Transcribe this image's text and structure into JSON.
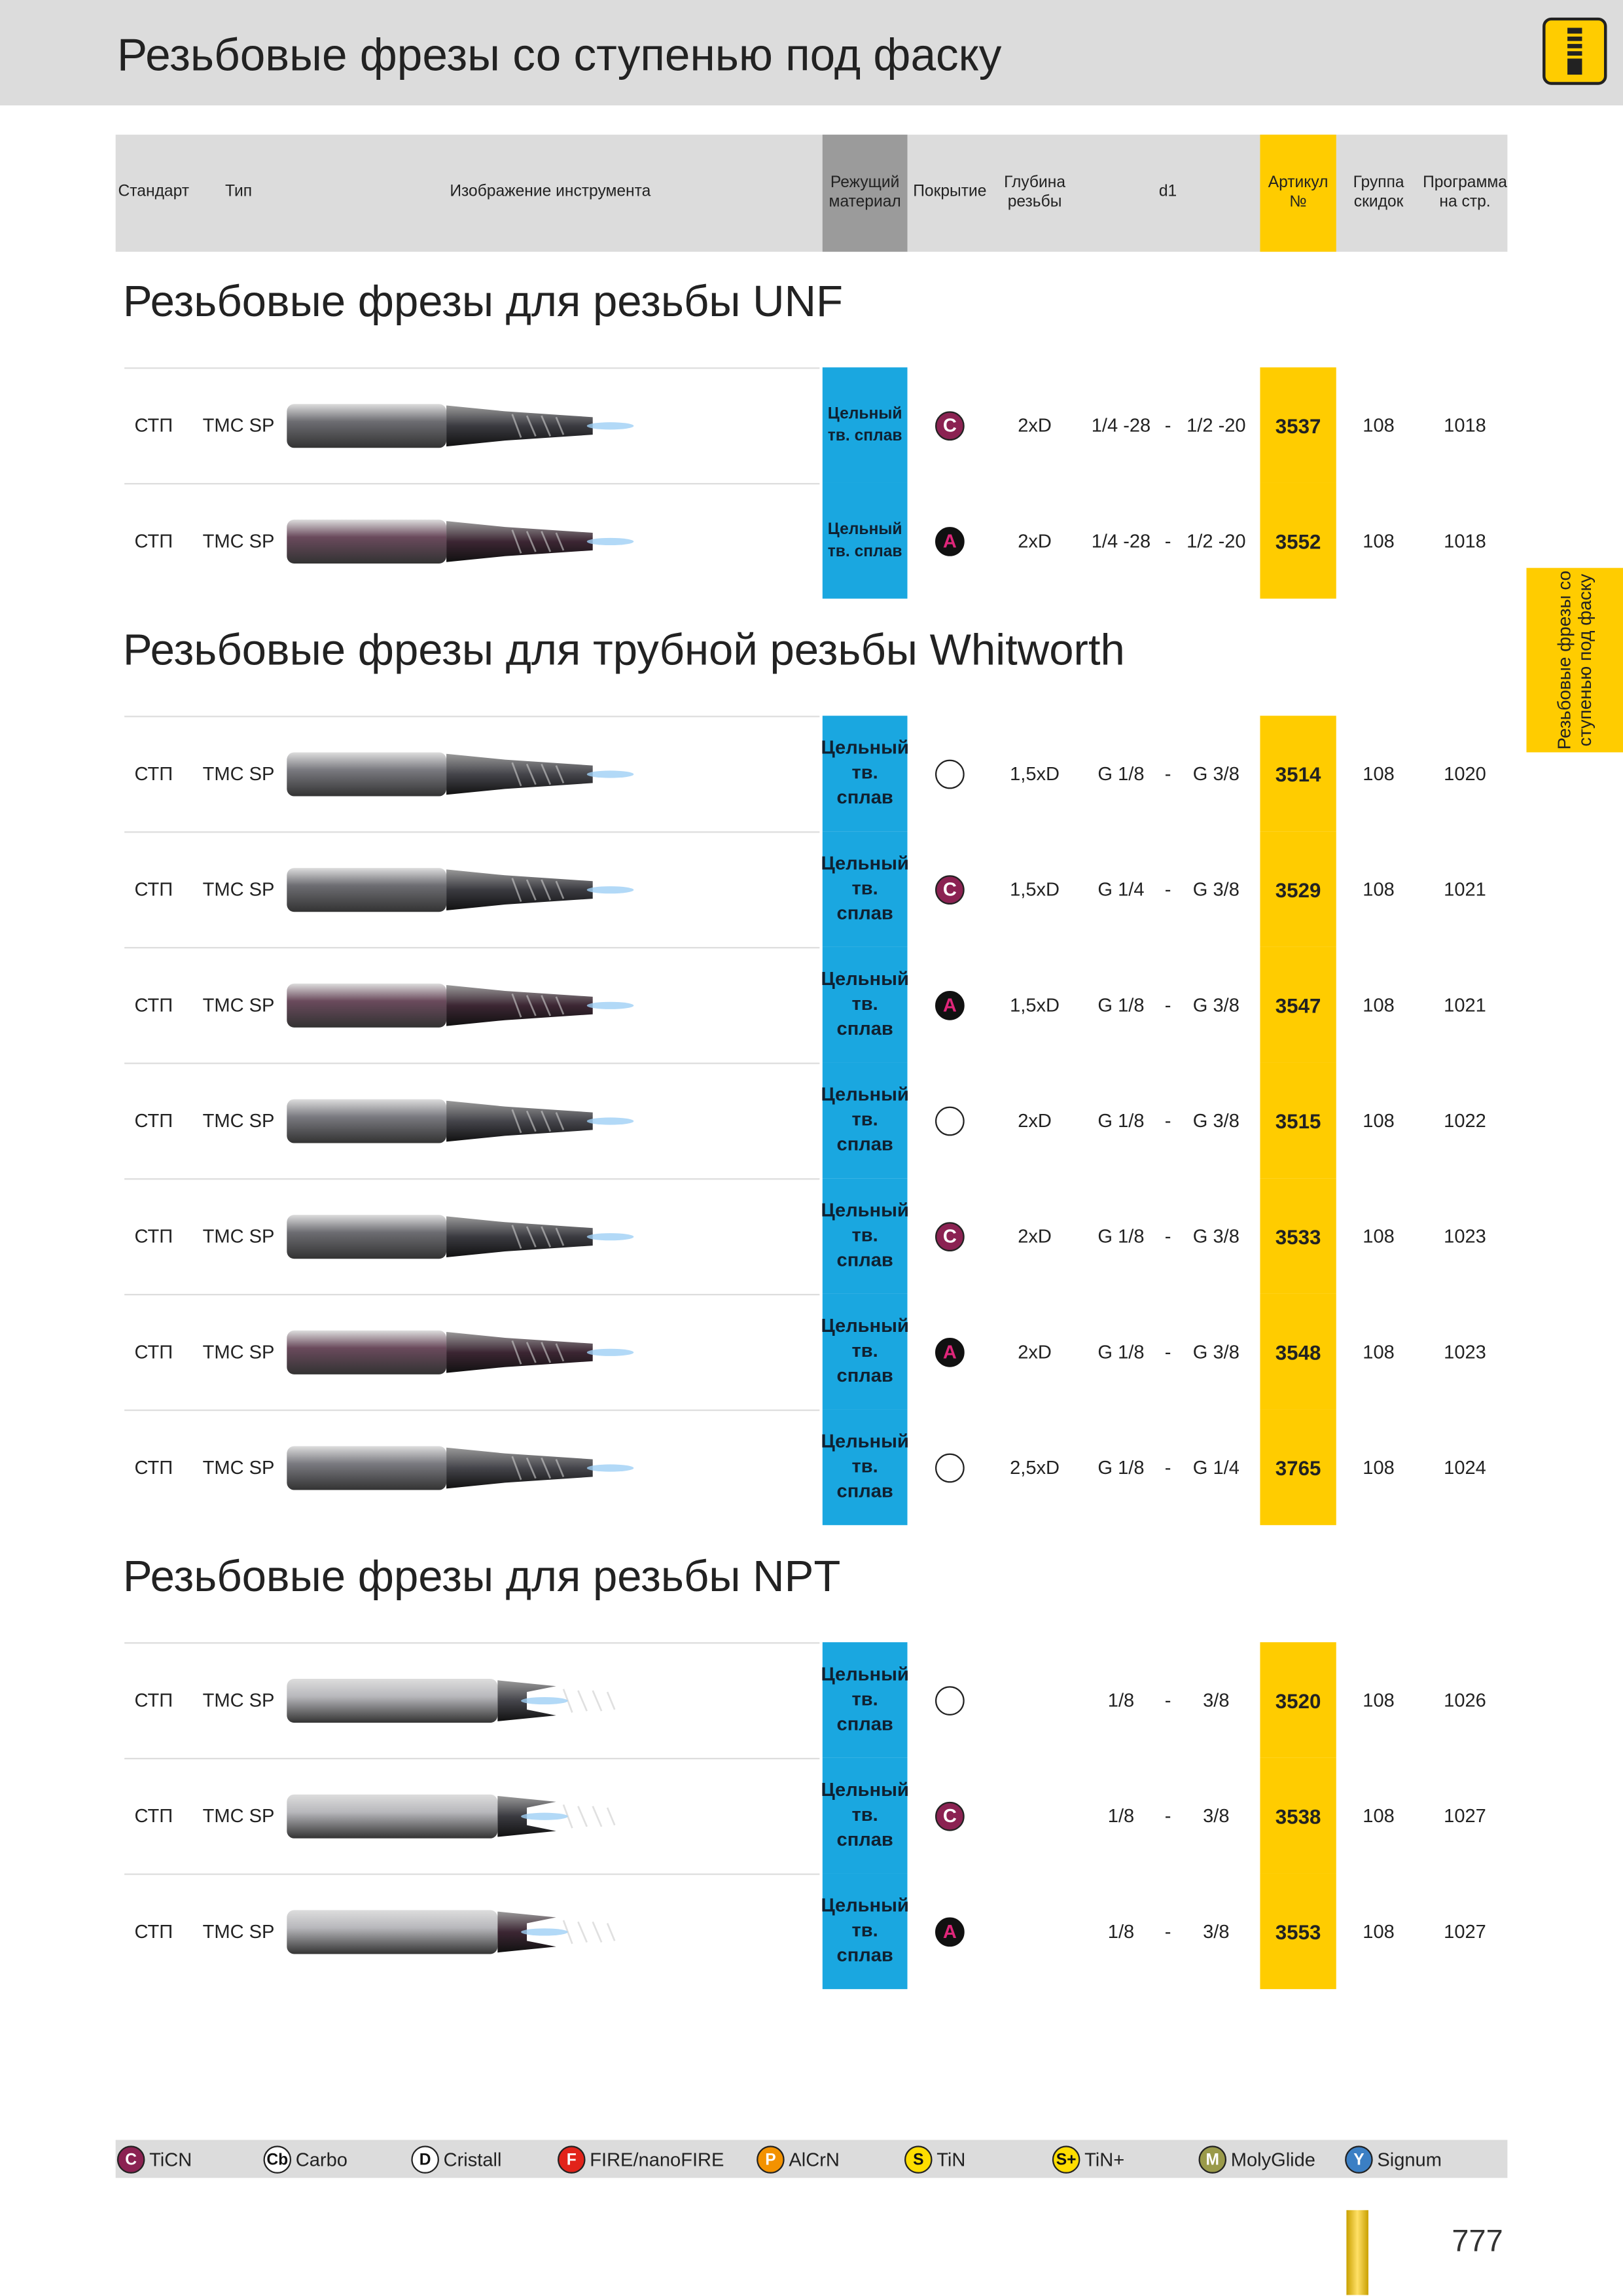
{
  "header": {
    "title": "Резьбовые фрезы со ступенью под фаску"
  },
  "columns": [
    "Стандарт",
    "Тип",
    "Изображение инструмента",
    "Режущий материал",
    "Покрытие",
    "Глубина резьбы",
    "d1",
    "Артикул №",
    "Группа скидок",
    "Программа на стр."
  ],
  "sections": [
    {
      "title": "Резьбовые фрезы для резьбы UNF",
      "rows": [
        {
          "standard": "СТП",
          "type": "TMC SP",
          "material": "Цельный тв. сплав",
          "coating": "C",
          "depth": "2xD",
          "d1_from": "1/4 -28",
          "sep": "-",
          "d1_to": "1/2 -20",
          "article": "3537",
          "group": "108",
          "page": "1018"
        },
        {
          "standard": "СТП",
          "type": "TMC SP",
          "material": "Цельный тв. сплав",
          "coating": "A",
          "depth": "2xD",
          "d1_from": "1/4 -28",
          "sep": "-",
          "d1_to": "1/2 -20",
          "article": "3552",
          "group": "108",
          "page": "1018"
        }
      ]
    },
    {
      "title": "Резьбовые фрезы для трубной резьбы Whitworth",
      "rows": [
        {
          "standard": "СТП",
          "type": "TMC SP",
          "material": "Цельный тв. сплав",
          "coating": null,
          "depth": "1,5xD",
          "d1_from": "G 1/8",
          "sep": "-",
          "d1_to": "G 3/8",
          "article": "3514",
          "group": "108",
          "page": "1020"
        },
        {
          "standard": "СТП",
          "type": "TMC SP",
          "material": "Цельный тв. сплав",
          "coating": "C",
          "depth": "1,5xD",
          "d1_from": "G 1/4",
          "sep": "-",
          "d1_to": "G 3/8",
          "article": "3529",
          "group": "108",
          "page": "1021"
        },
        {
          "standard": "СТП",
          "type": "TMC SP",
          "material": "Цельный тв. сплав",
          "coating": "A",
          "depth": "1,5xD",
          "d1_from": "G 1/8",
          "sep": "-",
          "d1_to": "G 3/8",
          "article": "3547",
          "group": "108",
          "page": "1021"
        },
        {
          "standard": "СТП",
          "type": "TMC SP",
          "material": "Цельный тв. сплав",
          "coating": null,
          "depth": "2xD",
          "d1_from": "G 1/8",
          "sep": "-",
          "d1_to": "G 3/8",
          "article": "3515",
          "group": "108",
          "page": "1022"
        },
        {
          "standard": "СТП",
          "type": "TMC SP",
          "material": "Цельный тв. сплав",
          "coating": "C",
          "depth": "2xD",
          "d1_from": "G 1/8",
          "sep": "-",
          "d1_to": "G 3/8",
          "article": "3533",
          "group": "108",
          "page": "1023"
        },
        {
          "standard": "СТП",
          "type": "TMC SP",
          "material": "Цельный тв. сплав",
          "coating": "A",
          "depth": "2xD",
          "d1_from": "G 1/8",
          "sep": "-",
          "d1_to": "G 3/8",
          "article": "3548",
          "group": "108",
          "page": "1023"
        },
        {
          "standard": "СТП",
          "type": "TMC SP",
          "material": "Цельный тв. сплав",
          "coating": null,
          "depth": "2,5xD",
          "d1_from": "G 1/8",
          "sep": "-",
          "d1_to": "G 1/4",
          "article": "3765",
          "group": "108",
          "page": "1024"
        }
      ]
    },
    {
      "title": "Резьбовые фрезы для резьбы NPT",
      "rows": [
        {
          "standard": "СТП",
          "type": "TMC SP",
          "material": "Цельный тв. сплав",
          "coating": null,
          "d1_from": "1/8",
          "sep": "-",
          "d1_to": "3/8",
          "article": "3520",
          "group": "108",
          "page": "1026"
        },
        {
          "standard": "СТП",
          "type": "TMC SP",
          "material": "Цельный тв. сплав",
          "coating": "C",
          "d1_from": "1/8",
          "sep": "-",
          "d1_to": "3/8",
          "article": "3538",
          "group": "108",
          "page": "1027"
        },
        {
          "standard": "СТП",
          "type": "TMC SP",
          "material": "Цельный тв. сплав",
          "coating": "A",
          "d1_from": "1/8",
          "sep": "-",
          "d1_to": "3/8",
          "article": "3553",
          "group": "108",
          "page": "1027"
        }
      ]
    }
  ],
  "side_tab": "Резьбовые фрезы со ступенью под фаску",
  "legend": [
    {
      "code": "C",
      "name": "TiCN"
    },
    {
      "code": "Cb",
      "name": "Carbo"
    },
    {
      "code": "D",
      "name": "Cristall"
    },
    {
      "code": "F",
      "name": "FIRE/nanoFIRE"
    },
    {
      "code": "P",
      "name": "AlCrN"
    },
    {
      "code": "S",
      "name": "TiN"
    },
    {
      "code": "S+",
      "name": "TiN+"
    },
    {
      "code": "M",
      "name": "MolyGlide"
    },
    {
      "code": "Y",
      "name": "Signum"
    }
  ],
  "page_number": "777"
}
